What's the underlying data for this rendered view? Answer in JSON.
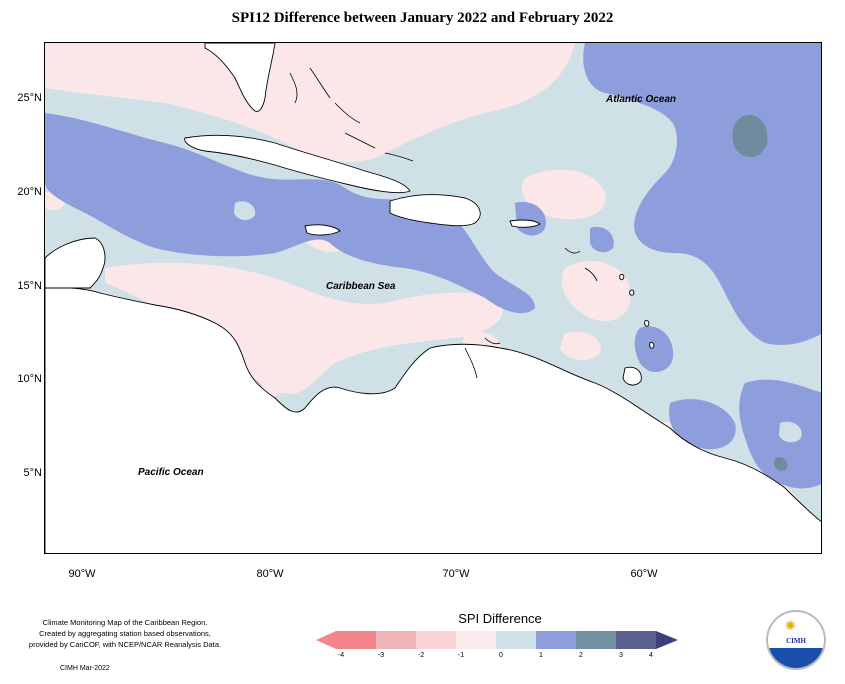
{
  "title": "SPI12 Difference between January 2022 and February 2022",
  "map": {
    "lat_labels": [
      "25°N",
      "20°N",
      "15°N",
      "10°N",
      "5°N"
    ],
    "lon_labels": [
      "90°W",
      "80°W",
      "70°W",
      "60°W"
    ],
    "ocean_labels": {
      "atlantic": "Atlantic Ocean",
      "caribbean": "Caribbean Sea",
      "pacific": "Pacific Ocean"
    },
    "colors": {
      "land": "#ffffff",
      "coast": "#000000",
      "class_neg2_to_neg1": "#f7cfd3",
      "class_neg1_to_0": "#fbe7e8",
      "class_0_to_1": "#cfe0e6",
      "class_1_to_2": "#8e9edd",
      "class_2_to_3": "#6f8c9f",
      "class_neg3_to_neg2": "#eeb5b8"
    }
  },
  "legend": {
    "title": "SPI Difference",
    "ticks": [
      "-4",
      "-3",
      "-2",
      "-1",
      "0",
      "1",
      "2",
      "3",
      "4"
    ],
    "colors": [
      "#f2868c",
      "#efb4b6",
      "#f8d4d6",
      "#fbeaeb",
      "#cfe0e6",
      "#8e9edd",
      "#7391a2",
      "#5a5f8e"
    ]
  },
  "credit": {
    "line1": "Climate Monitoring Map of the Caribbean Region.",
    "line2": "Created by aggregating station based observations,",
    "line3": "provided by CariCOF, with NCEP/NCAR Reanalysis Data.",
    "date": "CIMH Mar-2022"
  },
  "logo": {
    "text": "CIMH"
  }
}
